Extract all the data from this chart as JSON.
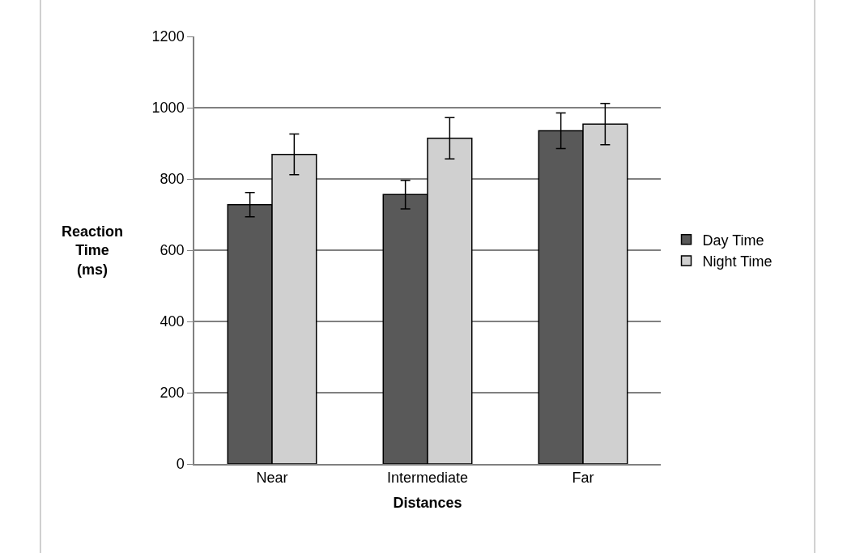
{
  "chart_data": {
    "type": "bar",
    "xlabel": "Distances",
    "ylabel": "Reaction Time (ms)",
    "categories": [
      "Near",
      "Intermediate",
      "Far"
    ],
    "series": [
      {
        "name": "Day Time",
        "color": "#595959",
        "values": [
          728,
          756,
          935
        ],
        "errors": [
          34,
          40,
          50
        ]
      },
      {
        "name": "Night Time",
        "color": "#d0d0d0",
        "values": [
          869,
          914,
          954
        ],
        "errors": [
          57,
          58,
          58
        ]
      }
    ],
    "ylim": [
      0,
      1200
    ],
    "yticks": [
      0,
      200,
      400,
      600,
      800,
      1000,
      1200
    ],
    "grid": "y",
    "legend": "right"
  }
}
